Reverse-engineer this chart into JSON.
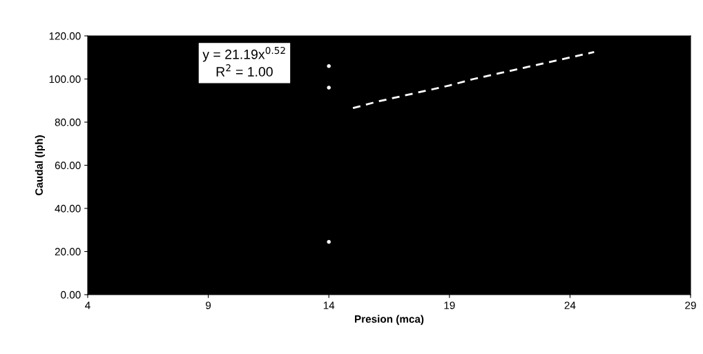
{
  "chart_data": {
    "type": "line",
    "xlabel": "Presion (mca)",
    "ylabel": "Caudal (lph)",
    "annotations": [
      "y = 21.19x$^{0.52}$\nR$^{2}$ = 1.00"
    ],
    "xlim": [
      4,
      29
    ],
    "xticks": [
      4,
      9,
      14,
      19,
      24,
      29
    ],
    "ylim": [
      0,
      120
    ],
    "yticks": [
      {
        "value": 0,
        "label": "0.00"
      },
      {
        "value": 20,
        "label": "20.00"
      },
      {
        "value": 40,
        "label": "40.00"
      },
      {
        "value": 60,
        "label": "60.00"
      },
      {
        "value": 80,
        "label": "80.00"
      },
      {
        "value": 100,
        "label": "100.00"
      },
      {
        "value": 120,
        "label": "120.00"
      }
    ],
    "grid": false,
    "legend": false,
    "line_style": "dashed",
    "marker": "none",
    "series": [
      {
        "color": "#ffffff",
        "x": [
          15,
          16,
          17,
          18,
          19,
          20,
          21,
          22,
          23,
          24,
          25
        ],
        "values": [
          86.5,
          89.5,
          92,
          94.5,
          97,
          100,
          102.5,
          105,
          107.5,
          110,
          112.5
        ]
      },
      {
        "type": "scatter",
        "color": "#ffffff",
        "x": [
          14,
          14,
          14
        ],
        "values": [
          106,
          96,
          24.5
        ]
      }
    ]
  }
}
